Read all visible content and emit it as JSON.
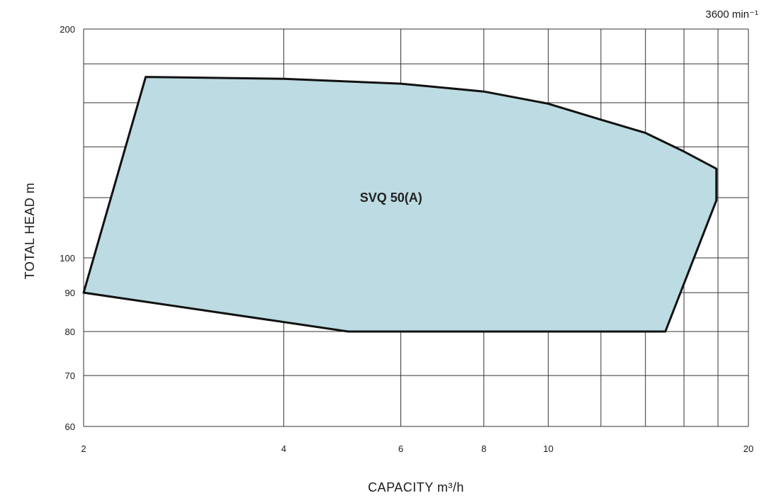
{
  "chart_data": {
    "type": "area",
    "speed_label": "3600 min⁻¹",
    "xlabel": "CAPACITY  m³/h",
    "ylabel": "TOTAL HEAD  m",
    "x_scale": "log",
    "y_scale": "log",
    "xlim": [
      2,
      20
    ],
    "ylim": [
      60,
      200
    ],
    "x_gridlines": [
      2,
      4,
      6,
      8,
      10,
      12,
      14,
      16,
      18,
      20
    ],
    "y_gridlines": [
      60,
      70,
      80,
      90,
      100,
      120,
      140,
      160,
      180,
      200
    ],
    "x_tick_labels": [
      {
        "value": 2,
        "label": "2"
      },
      {
        "value": 4,
        "label": "4"
      },
      {
        "value": 6,
        "label": "6"
      },
      {
        "value": 8,
        "label": "8"
      },
      {
        "value": 10,
        "label": "10"
      },
      {
        "value": 20,
        "label": "20"
      }
    ],
    "y_tick_labels": [
      {
        "value": 60,
        "label": "60"
      },
      {
        "value": 70,
        "label": "70"
      },
      {
        "value": 80,
        "label": "80"
      },
      {
        "value": 90,
        "label": "90"
      },
      {
        "value": 100,
        "label": "100"
      },
      {
        "value": 200,
        "label": "200"
      }
    ],
    "grid": true,
    "regions": [
      {
        "name": "SVQ 50(A)",
        "fill_color": "#bcdbe2",
        "stroke_color": "#111111",
        "label_at": {
          "x": 5.8,
          "y": 120
        },
        "boundary": [
          {
            "x": 2.48,
            "y": 173
          },
          {
            "x": 4.0,
            "y": 172
          },
          {
            "x": 6.0,
            "y": 169.5
          },
          {
            "x": 8.0,
            "y": 165.5
          },
          {
            "x": 10.0,
            "y": 159.5
          },
          {
            "x": 12.0,
            "y": 152
          },
          {
            "x": 14.0,
            "y": 146
          },
          {
            "x": 16.0,
            "y": 138
          },
          {
            "x": 17.9,
            "y": 131
          },
          {
            "x": 17.9,
            "y": 119
          },
          {
            "x": 15.0,
            "y": 80
          },
          {
            "x": 5.0,
            "y": 80
          },
          {
            "x": 2.0,
            "y": 90
          },
          {
            "x": 2.48,
            "y": 173
          }
        ]
      }
    ]
  }
}
